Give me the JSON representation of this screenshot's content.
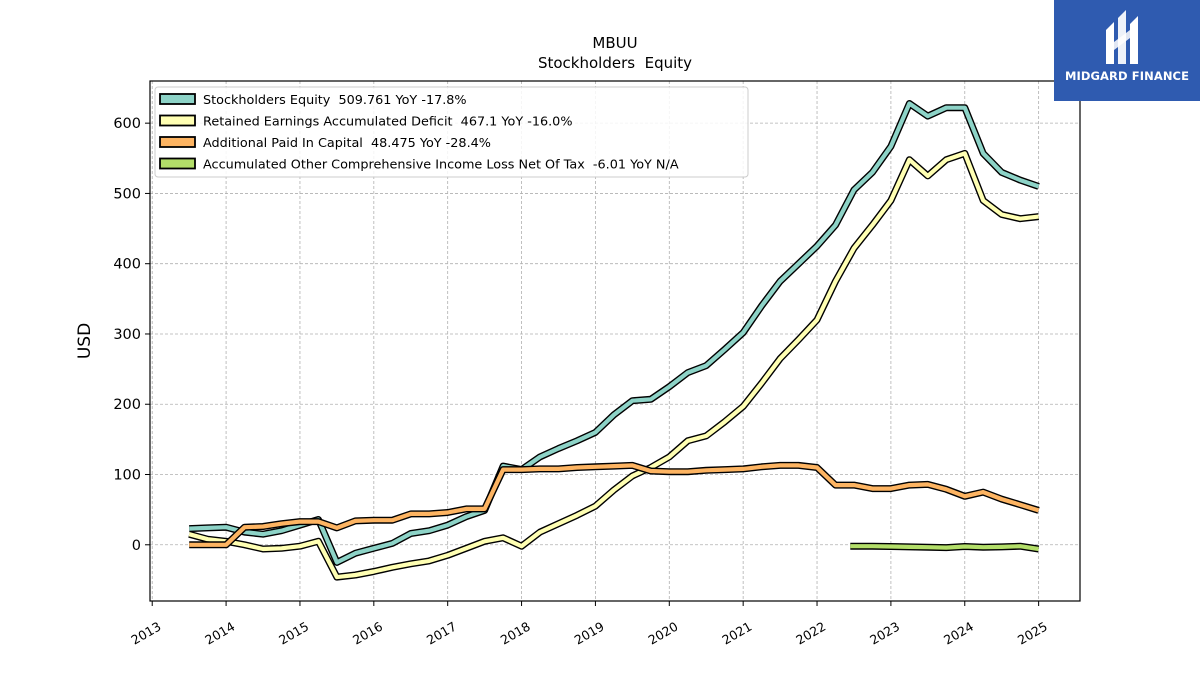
{
  "chart_data": {
    "type": "line",
    "title": "MBUU",
    "subtitle": "Stockholders  Equity",
    "xlabel": "",
    "ylabel": "USD",
    "xlim": [
      2012.97,
      2025.56
    ],
    "ylim": [
      -80,
      660
    ],
    "x_ticks": [
      2013,
      2014,
      2015,
      2016,
      2017,
      2018,
      2019,
      2020,
      2021,
      2022,
      2023,
      2024,
      2025
    ],
    "x_tick_labels": [
      "2013",
      "2014",
      "2015",
      "2016",
      "2017",
      "2018",
      "2019",
      "2020",
      "2021",
      "2022",
      "2023",
      "2024",
      "2025"
    ],
    "y_ticks": [
      0,
      100,
      200,
      300,
      400,
      500,
      600
    ],
    "y_tick_labels": [
      "0",
      "100",
      "200",
      "300",
      "400",
      "500",
      "600"
    ],
    "grid": true,
    "legend_position": "top-left",
    "series": [
      {
        "name": "Stockholders Equity  509.761 YoY -17.8%",
        "color": "#8dd3c7",
        "points": [
          [
            2013.5,
            23
          ],
          [
            2013.75,
            24
          ],
          [
            2014.0,
            25
          ],
          [
            2014.25,
            18
          ],
          [
            2014.5,
            15
          ],
          [
            2014.75,
            20
          ],
          [
            2015.0,
            28
          ],
          [
            2015.25,
            36
          ],
          [
            2015.5,
            -25
          ],
          [
            2015.75,
            -12
          ],
          [
            2016.0,
            -5
          ],
          [
            2016.25,
            2
          ],
          [
            2016.5,
            16
          ],
          [
            2016.75,
            20
          ],
          [
            2017.0,
            28
          ],
          [
            2017.25,
            40
          ],
          [
            2017.5,
            49
          ],
          [
            2017.75,
            112
          ],
          [
            2018.0,
            107
          ],
          [
            2018.25,
            125
          ],
          [
            2018.5,
            137
          ],
          [
            2018.75,
            148
          ],
          [
            2019.0,
            160
          ],
          [
            2019.25,
            185
          ],
          [
            2019.5,
            205
          ],
          [
            2019.75,
            207
          ],
          [
            2020.0,
            225
          ],
          [
            2020.25,
            245
          ],
          [
            2020.5,
            255
          ],
          [
            2020.75,
            278
          ],
          [
            2021.0,
            302
          ],
          [
            2021.25,
            340
          ],
          [
            2021.5,
            375
          ],
          [
            2021.75,
            400
          ],
          [
            2022.0,
            425
          ],
          [
            2022.25,
            455
          ],
          [
            2022.5,
            505
          ],
          [
            2022.75,
            530
          ],
          [
            2023.0,
            567
          ],
          [
            2023.25,
            628
          ],
          [
            2023.5,
            610
          ],
          [
            2023.75,
            622
          ],
          [
            2024.0,
            622
          ],
          [
            2024.25,
            557
          ],
          [
            2024.5,
            530
          ],
          [
            2024.75,
            519
          ],
          [
            2025.0,
            510
          ]
        ]
      },
      {
        "name": "Retained Earnings Accumulated Deficit  467.1 YoY -16.0%",
        "color": "#ffffb3",
        "points": [
          [
            2013.5,
            15
          ],
          [
            2013.75,
            8
          ],
          [
            2014.0,
            5
          ],
          [
            2014.25,
            0
          ],
          [
            2014.5,
            -6
          ],
          [
            2014.75,
            -5
          ],
          [
            2015.0,
            -2
          ],
          [
            2015.25,
            5
          ],
          [
            2015.5,
            -46
          ],
          [
            2015.75,
            -43
          ],
          [
            2016.0,
            -38
          ],
          [
            2016.25,
            -32
          ],
          [
            2016.5,
            -27
          ],
          [
            2016.75,
            -23
          ],
          [
            2017.0,
            -15
          ],
          [
            2017.25,
            -5
          ],
          [
            2017.5,
            5
          ],
          [
            2017.75,
            10
          ],
          [
            2018.0,
            -2
          ],
          [
            2018.25,
            18
          ],
          [
            2018.5,
            30
          ],
          [
            2018.75,
            42
          ],
          [
            2019.0,
            55
          ],
          [
            2019.25,
            78
          ],
          [
            2019.5,
            98
          ],
          [
            2019.75,
            110
          ],
          [
            2020.0,
            125
          ],
          [
            2020.25,
            148
          ],
          [
            2020.5,
            155
          ],
          [
            2020.75,
            175
          ],
          [
            2021.0,
            197
          ],
          [
            2021.25,
            230
          ],
          [
            2021.5,
            265
          ],
          [
            2021.75,
            292
          ],
          [
            2022.0,
            320
          ],
          [
            2022.25,
            375
          ],
          [
            2022.5,
            422
          ],
          [
            2022.75,
            455
          ],
          [
            2023.0,
            490
          ],
          [
            2023.25,
            548
          ],
          [
            2023.5,
            525
          ],
          [
            2023.75,
            548
          ],
          [
            2024.0,
            557
          ],
          [
            2024.25,
            490
          ],
          [
            2024.5,
            470
          ],
          [
            2024.75,
            464
          ],
          [
            2025.0,
            467
          ]
        ]
      },
      {
        "name": "Additional Paid In Capital  48.475 YoY -28.4%",
        "color": "#fdb462",
        "points": [
          [
            2013.5,
            0
          ],
          [
            2013.75,
            0
          ],
          [
            2014.0,
            0
          ],
          [
            2014.25,
            25
          ],
          [
            2014.5,
            26
          ],
          [
            2014.75,
            30
          ],
          [
            2015.0,
            33
          ],
          [
            2015.25,
            33
          ],
          [
            2015.5,
            24
          ],
          [
            2015.75,
            34
          ],
          [
            2016.0,
            35
          ],
          [
            2016.25,
            35
          ],
          [
            2016.5,
            44
          ],
          [
            2016.75,
            44
          ],
          [
            2017.0,
            46
          ],
          [
            2017.25,
            51
          ],
          [
            2017.5,
            51
          ],
          [
            2017.75,
            107
          ],
          [
            2018.0,
            107
          ],
          [
            2018.25,
            108
          ],
          [
            2018.5,
            108
          ],
          [
            2018.75,
            110
          ],
          [
            2019.0,
            111
          ],
          [
            2019.25,
            112
          ],
          [
            2019.5,
            113
          ],
          [
            2019.75,
            105
          ],
          [
            2020.0,
            104
          ],
          [
            2020.25,
            104
          ],
          [
            2020.5,
            106
          ],
          [
            2020.75,
            107
          ],
          [
            2021.0,
            108
          ],
          [
            2021.25,
            111
          ],
          [
            2021.5,
            113
          ],
          [
            2021.75,
            113
          ],
          [
            2022.0,
            110
          ],
          [
            2022.25,
            85
          ],
          [
            2022.5,
            85
          ],
          [
            2022.75,
            80
          ],
          [
            2023.0,
            80
          ],
          [
            2023.25,
            85
          ],
          [
            2023.5,
            86
          ],
          [
            2023.75,
            79
          ],
          [
            2024.0,
            69
          ],
          [
            2024.25,
            75
          ],
          [
            2024.5,
            65
          ],
          [
            2024.75,
            57
          ],
          [
            2025.0,
            49
          ]
        ]
      },
      {
        "name": "Accumulated Other Comprehensive Income Loss Net Of Tax  -6.01 YoY N/A",
        "color": "#b3de69",
        "points": [
          [
            2022.45,
            -2
          ],
          [
            2022.75,
            -2
          ],
          [
            2023.0,
            -2.5
          ],
          [
            2023.25,
            -3
          ],
          [
            2023.5,
            -3.5
          ],
          [
            2023.75,
            -4
          ],
          [
            2024.0,
            -2.5
          ],
          [
            2024.25,
            -3.5
          ],
          [
            2024.5,
            -3
          ],
          [
            2024.75,
            -2
          ],
          [
            2025.0,
            -6
          ]
        ]
      }
    ]
  },
  "logo": {
    "name": "MIDGARD FINANCE"
  }
}
